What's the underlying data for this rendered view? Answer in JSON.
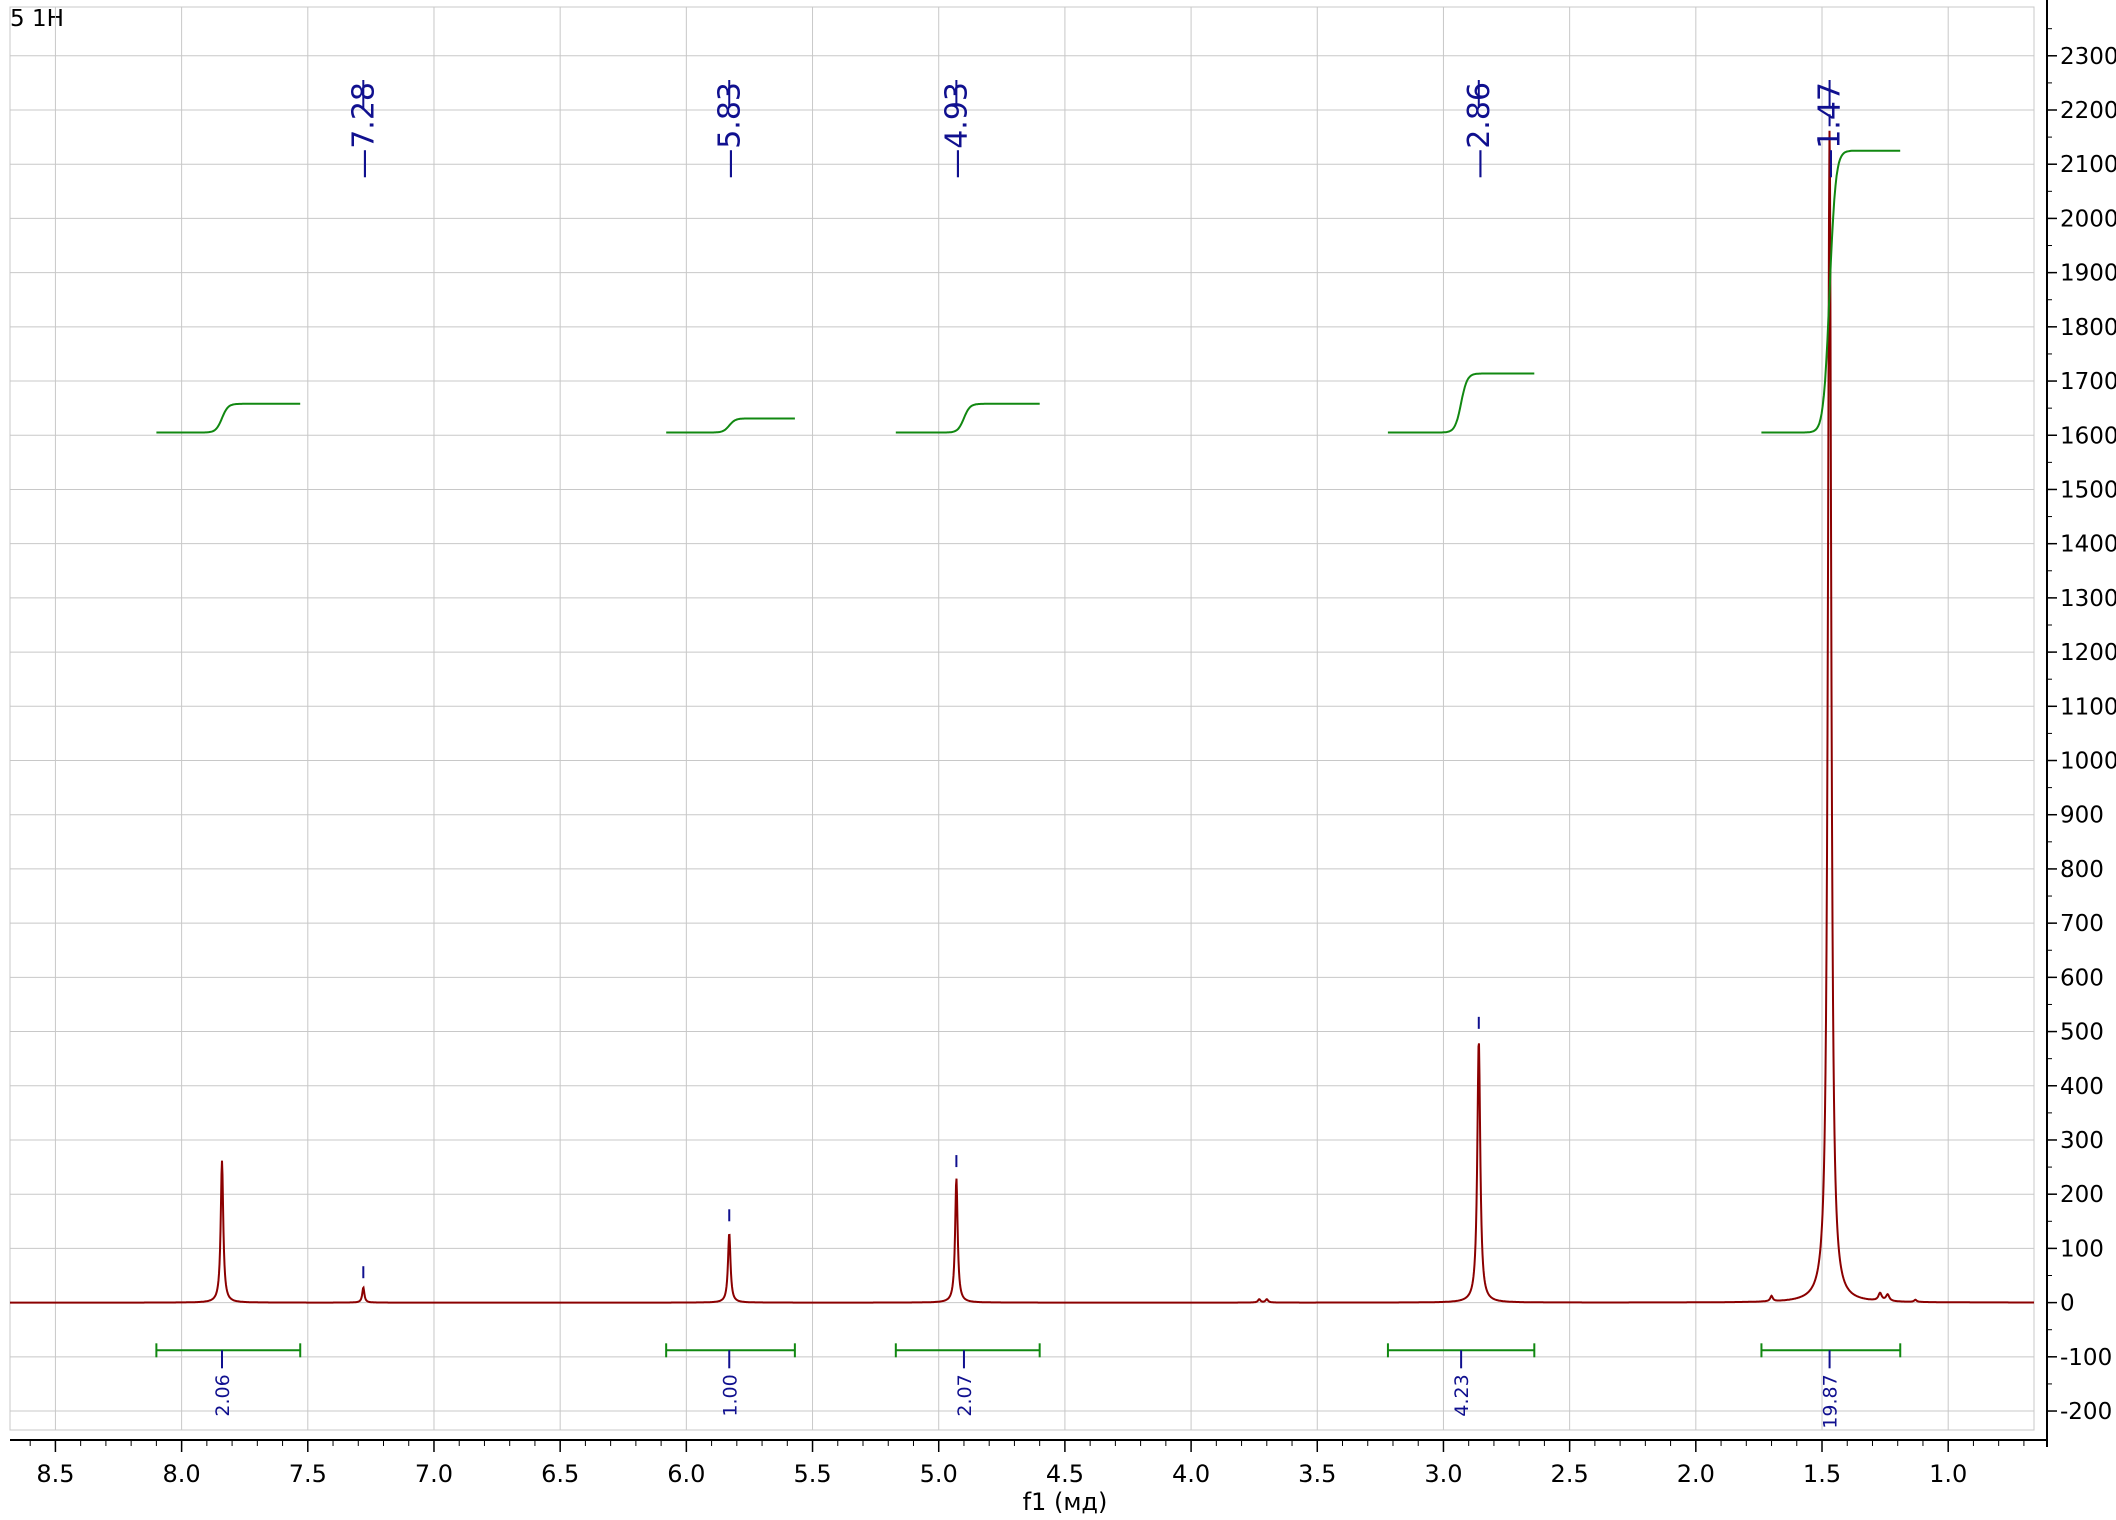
{
  "chart_data": {
    "type": "line",
    "title": "5 1H",
    "xlabel": "f1 (мд)",
    "ylabel": "",
    "xlim": [
      8.68,
      0.66
    ],
    "ylim": [
      -235,
      2390
    ],
    "x_reversed": true,
    "grid": true,
    "x_ticks": [
      "8.5",
      "8.0",
      "7.5",
      "7.0",
      "6.5",
      "6.0",
      "5.5",
      "5.0",
      "4.5",
      "4.0",
      "3.5",
      "3.0",
      "2.5",
      "2.0",
      "1.5",
      "1.0"
    ],
    "y_ticks": [
      "-200",
      "-100",
      "0",
      "100",
      "200",
      "300",
      "400",
      "500",
      "600",
      "700",
      "800",
      "900",
      "1000",
      "1100",
      "1200",
      "1300",
      "1400",
      "1500",
      "1600",
      "1700",
      "1800",
      "1900",
      "2000",
      "2100",
      "2200",
      "2300"
    ],
    "peak_labels": [
      "7.28",
      "5.83",
      "4.93",
      "2.86",
      "1.47"
    ],
    "peaks": [
      {
        "ppm": 7.84,
        "height": 262,
        "width": 0.006
      },
      {
        "ppm": 7.28,
        "height": 28,
        "width": 0.005
      },
      {
        "ppm": 5.83,
        "height": 128,
        "width": 0.006
      },
      {
        "ppm": 4.93,
        "height": 230,
        "width": 0.006
      },
      {
        "ppm": 3.73,
        "height": 6,
        "width": 0.006
      },
      {
        "ppm": 3.7,
        "height": 6,
        "width": 0.006
      },
      {
        "ppm": 2.86,
        "height": 485,
        "width": 0.007
      },
      {
        "ppm": 1.47,
        "height": 2165,
        "width": 0.008
      },
      {
        "ppm": 1.7,
        "height": 10,
        "width": 0.006
      },
      {
        "ppm": 1.27,
        "height": 14,
        "width": 0.008
      },
      {
        "ppm": 1.24,
        "height": 12,
        "width": 0.008
      },
      {
        "ppm": 1.13,
        "height": 4,
        "width": 0.006
      }
    ],
    "peak_markers": [
      {
        "ppm": 7.28,
        "value": 45
      },
      {
        "ppm": 5.83,
        "value": 150
      },
      {
        "ppm": 4.93,
        "value": 250
      },
      {
        "ppm": 2.86,
        "value": 505
      },
      {
        "ppm": 1.47,
        "value": 2170
      }
    ],
    "integrals": [
      {
        "label": "2.06",
        "from": 8.1,
        "to": 7.53,
        "center": 7.84,
        "y_start": 1605,
        "y_end": 1658
      },
      {
        "label": "1.00",
        "from": 6.08,
        "to": 5.57,
        "center": 5.83,
        "y_start": 1605,
        "y_end": 1631
      },
      {
        "label": "2.07",
        "from": 5.17,
        "to": 4.6,
        "center": 4.9,
        "y_start": 1605,
        "y_end": 1658
      },
      {
        "label": "4.23",
        "from": 3.22,
        "to": 2.64,
        "center": 2.93,
        "y_start": 1605,
        "y_end": 1714
      },
      {
        "label": "19.87",
        "from": 1.74,
        "to": 1.19,
        "center": 1.47,
        "y_start": 1605,
        "y_end": 2125
      }
    ],
    "integral_bar_value": -88,
    "colors": {
      "spectrum": "#8b0000",
      "integral": "#118811",
      "peak_label": "#10108f",
      "grid": "#c8c8c8",
      "axis": "#000000"
    }
  }
}
